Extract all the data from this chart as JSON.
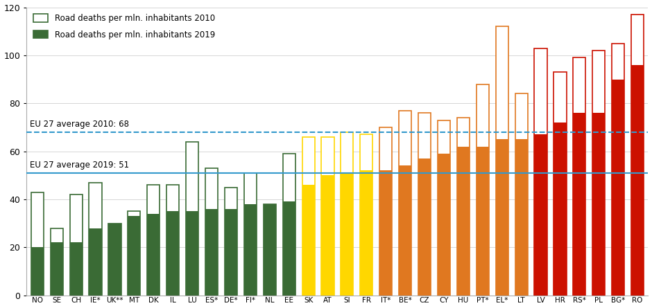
{
  "categories": [
    "NO",
    "SE",
    "CH",
    "IE*",
    "UK**",
    "MT",
    "DK",
    "IL",
    "LU",
    "ES*",
    "DE*",
    "FI*",
    "NL",
    "EE",
    "SK",
    "AT",
    "SI",
    "FR",
    "IT*",
    "BE*",
    "CZ",
    "CY",
    "HU",
    "PT*",
    "EL*",
    "LT",
    "LV",
    "HR",
    "RS*",
    "PL",
    "BG*",
    "RO"
  ],
  "val2010": [
    43,
    28,
    42,
    47,
    30,
    35,
    46,
    46,
    64,
    53,
    45,
    51,
    38,
    59,
    66,
    66,
    68,
    67,
    70,
    77,
    76,
    73,
    74,
    88,
    112,
    84,
    103,
    93,
    99,
    102,
    105,
    117
  ],
  "val2019": [
    20,
    22,
    22,
    28,
    30,
    33,
    34,
    35,
    35,
    36,
    36,
    38,
    38,
    39,
    46,
    50,
    51,
    52,
    52,
    54,
    57,
    59,
    62,
    62,
    65,
    65,
    67,
    72,
    76,
    76,
    90,
    96
  ],
  "bar_colors": [
    "#3a6b35",
    "#3a6b35",
    "#3a6b35",
    "#3a6b35",
    "#3a6b35",
    "#3a6b35",
    "#3a6b35",
    "#3a6b35",
    "#3a6b35",
    "#3a6b35",
    "#3a6b35",
    "#3a6b35",
    "#3a6b35",
    "#3a6b35",
    "#ffd700",
    "#ffd700",
    "#ffd700",
    "#ffd700",
    "#e07820",
    "#e07820",
    "#e07820",
    "#e07820",
    "#e07820",
    "#e07820",
    "#e07820",
    "#e07820",
    "#cc1100",
    "#cc1100",
    "#cc1100",
    "#cc1100",
    "#cc1100",
    "#cc1100"
  ],
  "avg2010": 68,
  "avg2019": 51,
  "avg2010_label": "EU 27 average 2010: 68",
  "avg2019_label": "EU 27 average 2019: 51",
  "legend_2010": "Road deaths per mln. inhabitants 2010",
  "legend_2019": "Road deaths per mln. inhabitants 2019",
  "ylim": [
    0,
    120
  ],
  "yticks": [
    0,
    20,
    40,
    60,
    80,
    100,
    120
  ],
  "bg_color": "#ffffff",
  "avg_line_color": "#3399cc",
  "grid_color": "#d0d0d0"
}
